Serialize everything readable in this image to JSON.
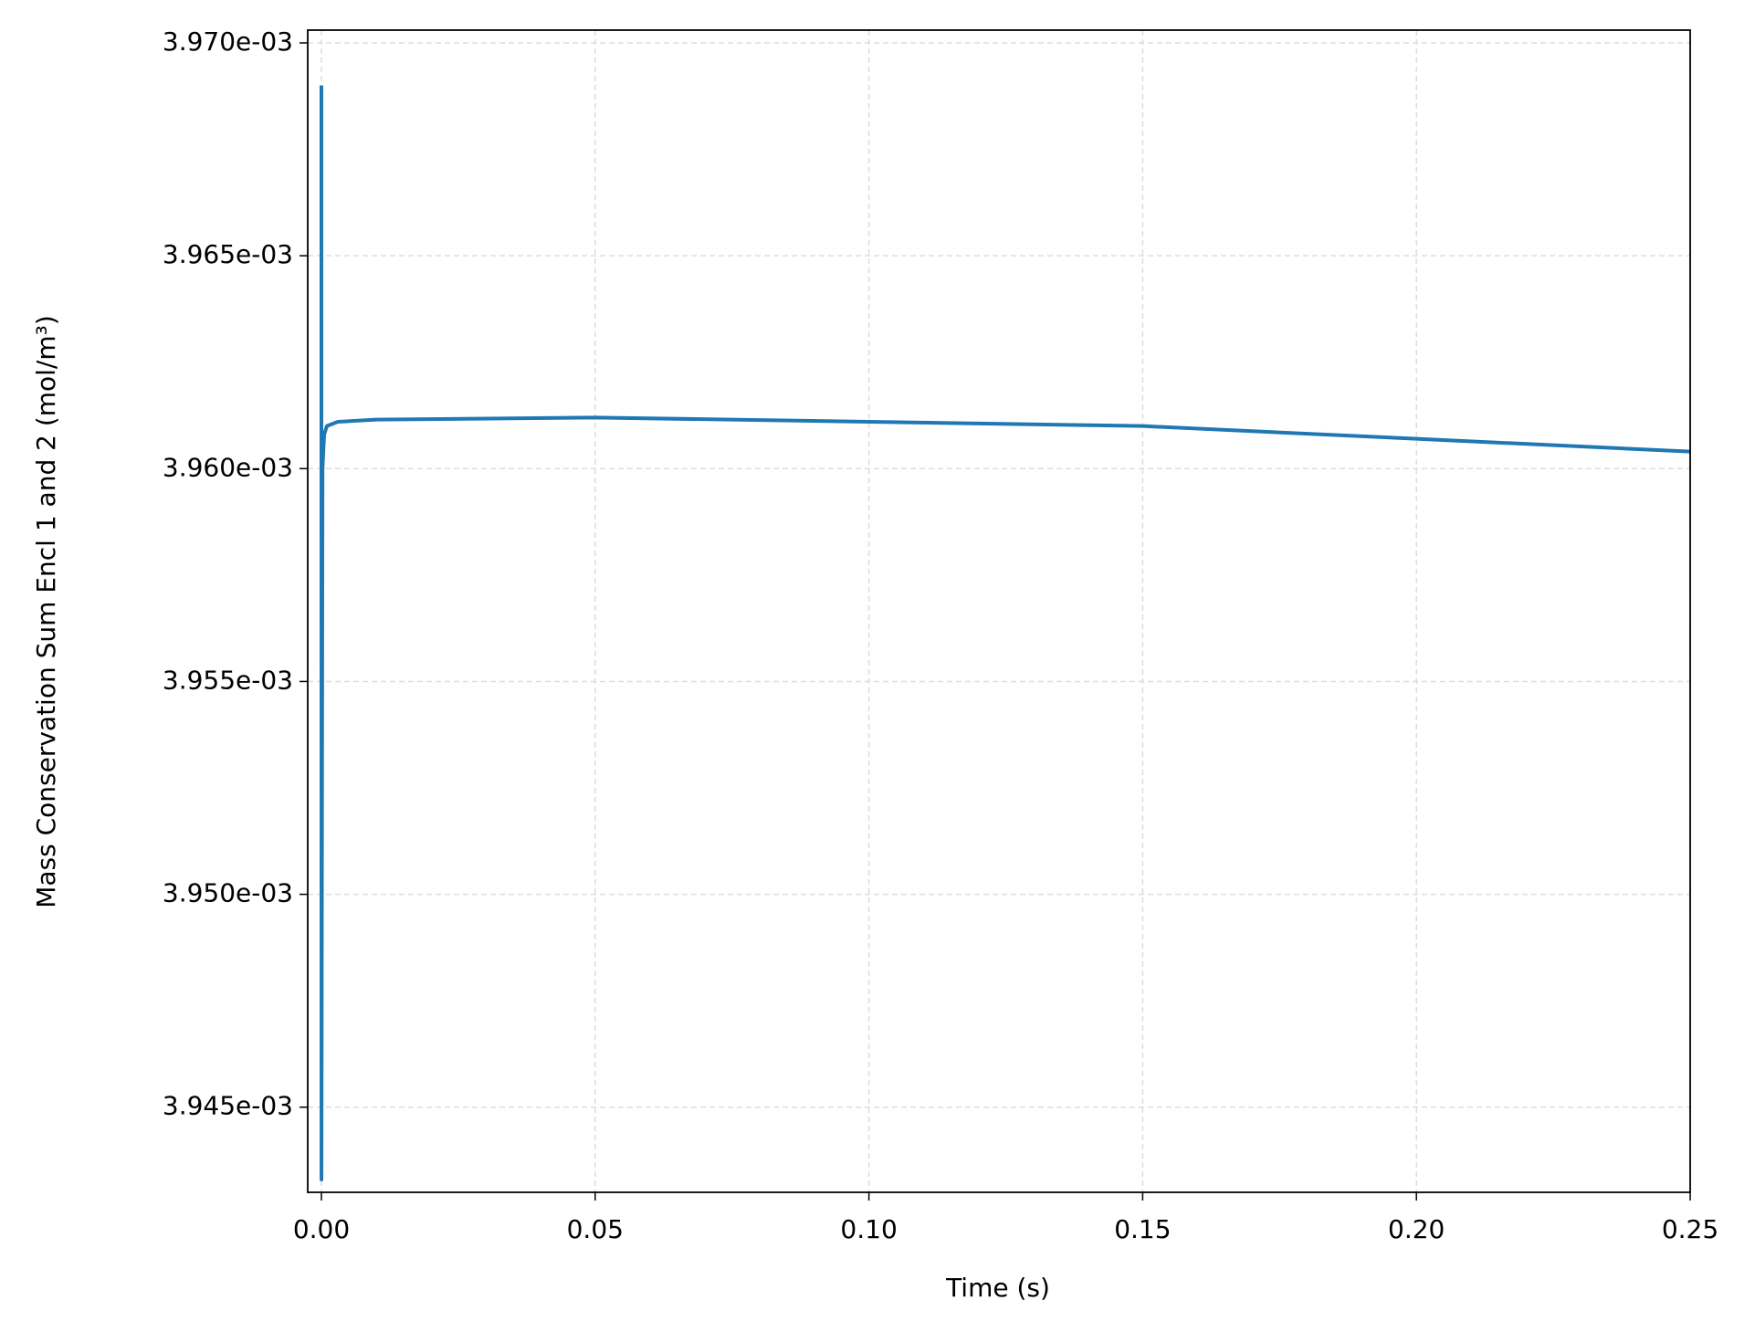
{
  "chart_data": {
    "type": "line",
    "xlabel": "Time (s)",
    "ylabel": "Mass Conservation Sum Encl 1 and 2 (mol/m³)",
    "x": [
      0,
      1e-05,
      0.0002,
      0.0005,
      0.001,
      0.003,
      0.01,
      0.05,
      0.1,
      0.15,
      0.2,
      0.25
    ],
    "series": [
      {
        "name": "Mass Conservation Sum",
        "color": "#1f77b4",
        "values": [
          0.003969,
          0.0039433,
          0.00396,
          0.0039608,
          0.003961,
          0.0039611,
          0.00396115,
          0.0039612,
          0.0039611,
          0.003961,
          0.0039607,
          0.0039604
        ]
      }
    ],
    "xlim": [
      -0.0025,
      0.25
    ],
    "ylim": [
      0.003943,
      0.0039703
    ],
    "xticks": [
      {
        "value": 0,
        "label": "0.00"
      },
      0.05,
      {
        "value": 0.1,
        "label": "0.10"
      },
      0.15,
      {
        "value": 0.2,
        "label": "0.20"
      },
      0.25
    ],
    "yticks": [
      {
        "value": 0.003945,
        "label": "3.945e-03"
      },
      {
        "value": 0.00395,
        "label": "3.950e-03"
      },
      {
        "value": 0.003955,
        "label": "3.955e-03"
      },
      {
        "value": 0.00396,
        "label": "3.960e-03"
      },
      {
        "value": 0.003965,
        "label": "3.965e-03"
      },
      {
        "value": 0.00397,
        "label": "3.970e-03"
      }
    ],
    "grid": true
  }
}
